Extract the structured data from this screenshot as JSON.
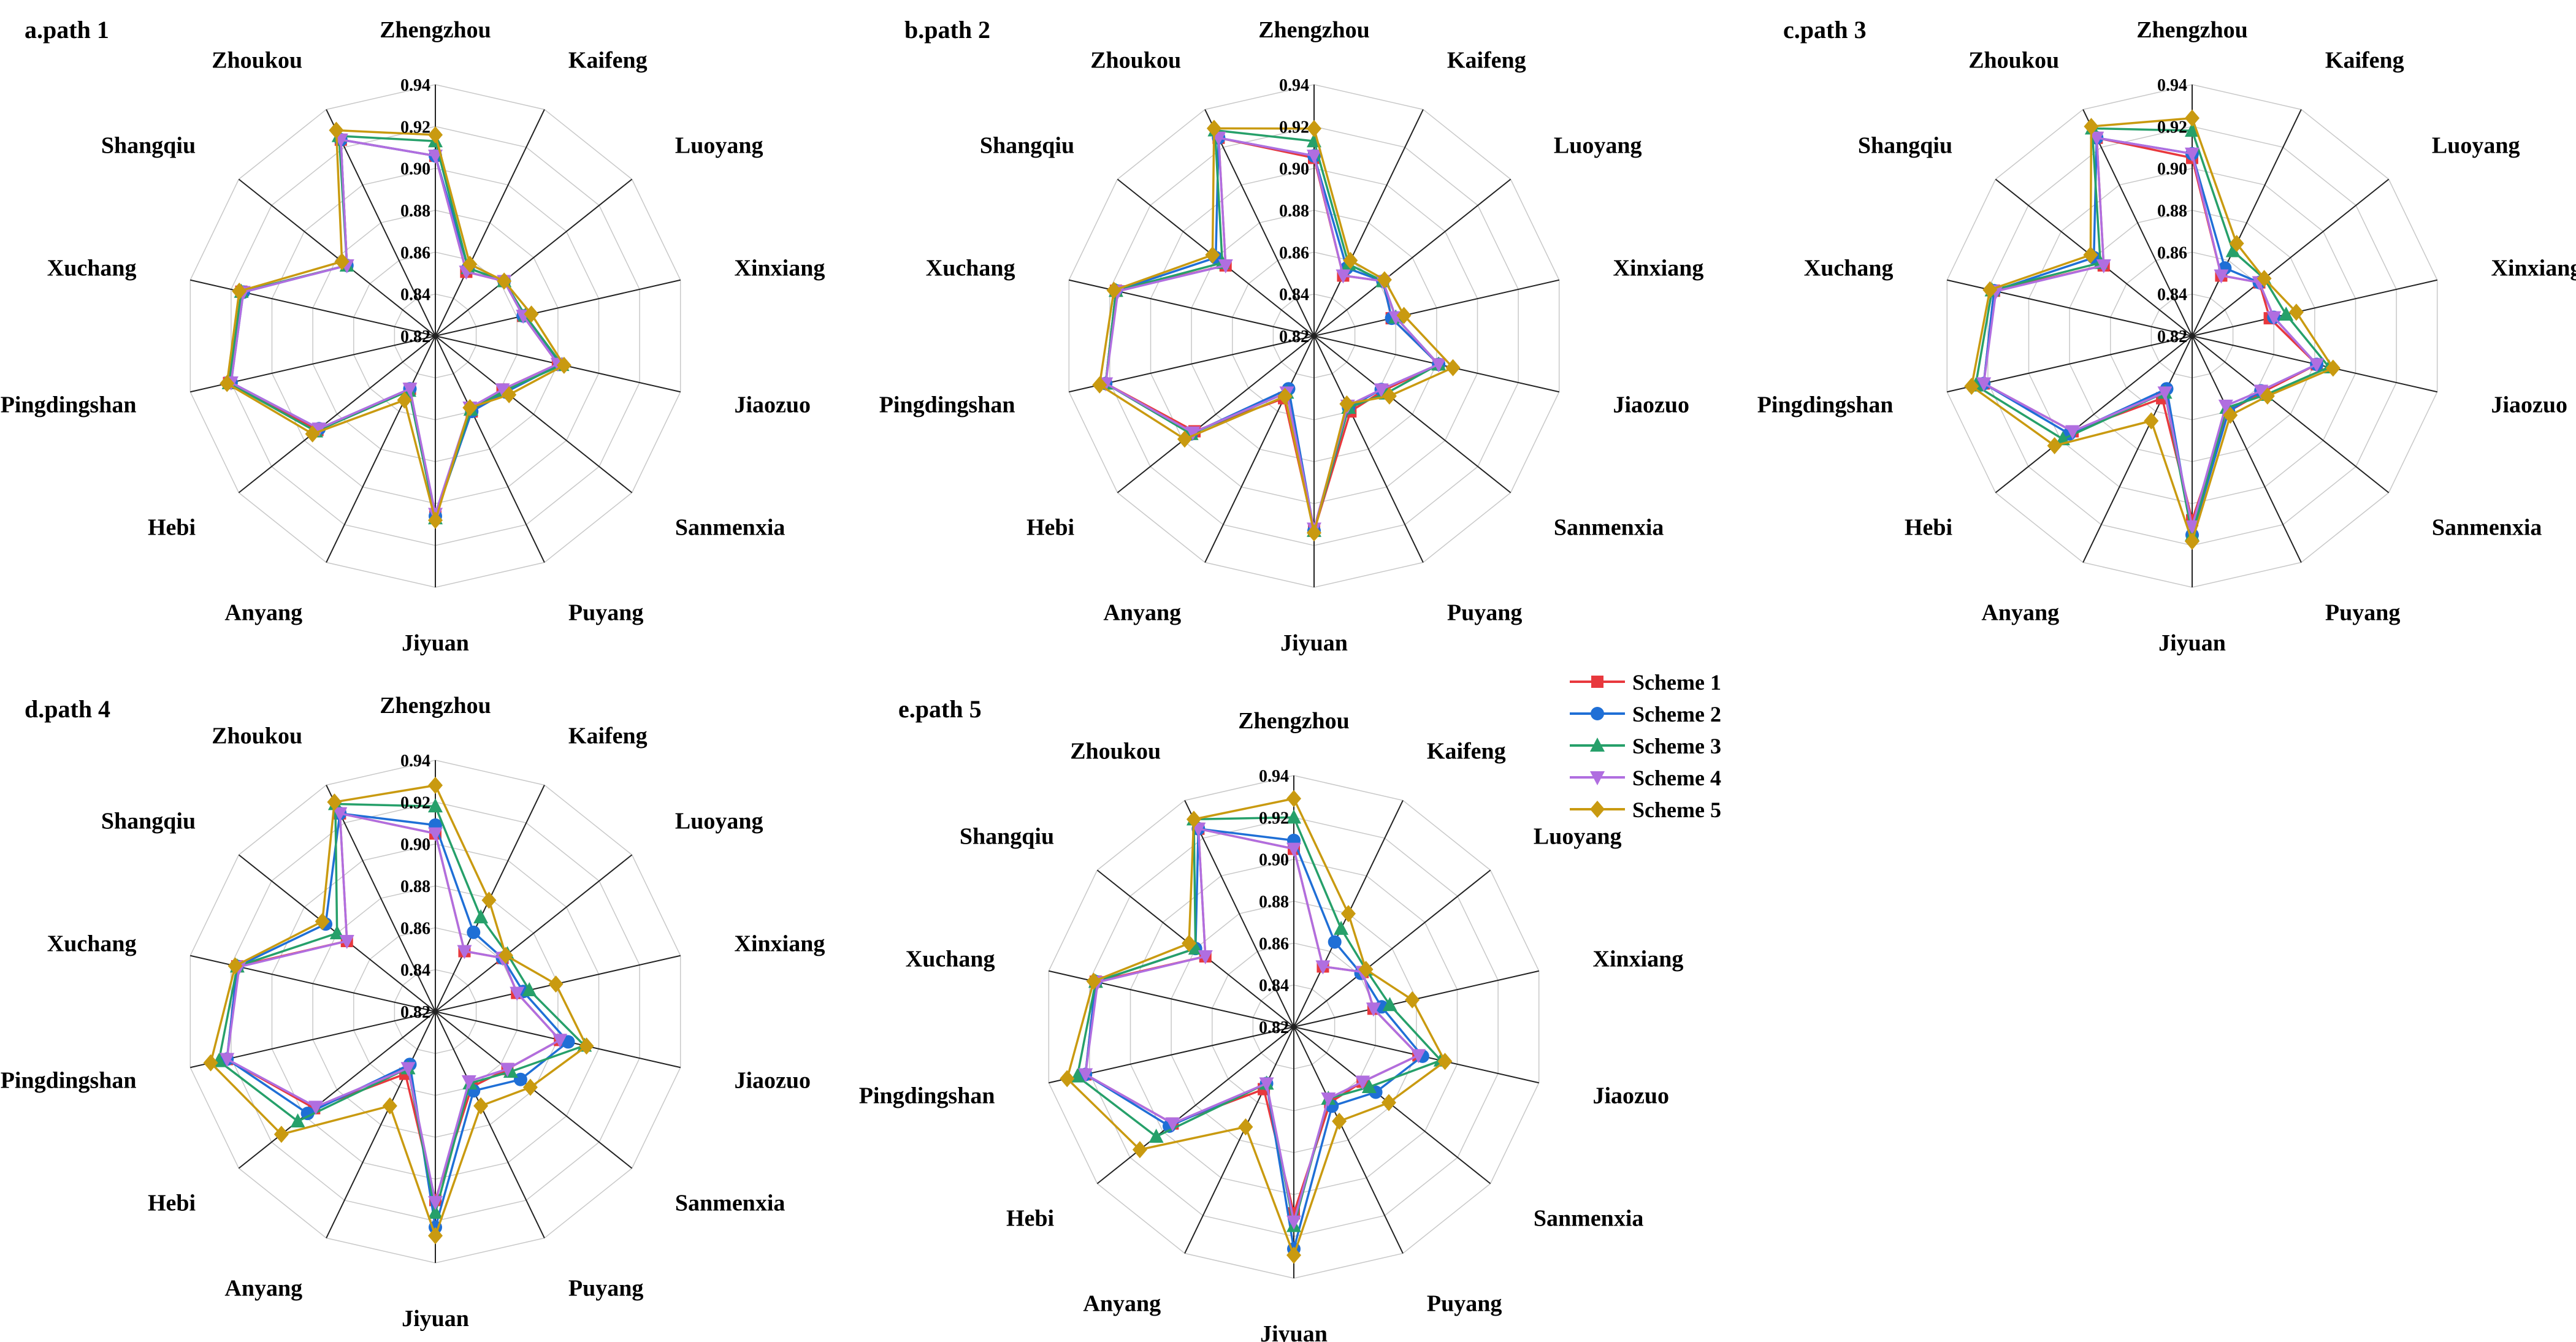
{
  "chart_data": {
    "type": "radar",
    "categories": [
      "Zhengzhou",
      "Kaifeng",
      "Luoyang",
      "Xinxiang",
      "Jiaozuo",
      "Sanmenxia",
      "Puyang",
      "Jiyuan",
      "Anyang",
      "Hebi",
      "Pingdingshan",
      "Xuchang",
      "Shangqiu",
      "Zhoukou"
    ],
    "ticks": [
      "0.82",
      "0.84",
      "0.86",
      "0.88",
      "0.90",
      "0.92",
      "0.94"
    ],
    "rlim": [
      0.82,
      0.94
    ],
    "series_names": [
      "Scheme 1",
      "Scheme 2",
      "Scheme 3",
      "Scheme 4",
      "Scheme 5"
    ],
    "colors": [
      "#e8383d",
      "#1f6fd6",
      "#26a06a",
      "#b06ee0",
      "#c99a10"
    ],
    "markers": [
      "square",
      "circle",
      "triangle-up",
      "triangle-down",
      "diamond"
    ],
    "panels": [
      {
        "title": "a.path 1",
        "series": [
          {
            "name": "Scheme 1",
            "values": [
              0.906,
              0.854,
              0.862,
              0.863,
              0.88,
              0.861,
              0.86,
              0.906,
              0.848,
              0.892,
              0.921,
              0.915,
              0.874,
              0.924
            ]
          },
          {
            "name": "Scheme 2",
            "values": [
              0.906,
              0.856,
              0.862,
              0.863,
              0.881,
              0.863,
              0.86,
              0.906,
              0.848,
              0.891,
              0.92,
              0.914,
              0.874,
              0.924
            ]
          },
          {
            "name": "Scheme 3",
            "values": [
              0.913,
              0.856,
              0.862,
              0.864,
              0.882,
              0.862,
              0.859,
              0.907,
              0.849,
              0.893,
              0.921,
              0.915,
              0.874,
              0.926
            ]
          },
          {
            "name": "Scheme 4",
            "values": [
              0.906,
              0.854,
              0.862,
              0.863,
              0.88,
              0.861,
              0.858,
              0.905,
              0.848,
              0.891,
              0.92,
              0.914,
              0.874,
              0.924
            ]
          },
          {
            "name": "Scheme 5",
            "values": [
              0.916,
              0.858,
              0.862,
              0.867,
              0.883,
              0.865,
              0.858,
              0.908,
              0.854,
              0.895,
              0.922,
              0.916,
              0.877,
              0.929
            ]
          }
        ]
      },
      {
        "title": "b.path 2",
        "series": [
          {
            "name": "Scheme 1",
            "values": [
              0.905,
              0.852,
              0.862,
              0.858,
              0.881,
              0.862,
              0.86,
              0.913,
              0.853,
              0.893,
              0.922,
              0.917,
              0.874,
              0.925
            ]
          },
          {
            "name": "Scheme 2",
            "values": [
              0.906,
              0.856,
              0.862,
              0.858,
              0.881,
              0.861,
              0.858,
              0.913,
              0.848,
              0.895,
              0.922,
              0.917,
              0.88,
              0.925
            ]
          },
          {
            "name": "Scheme 3",
            "values": [
              0.913,
              0.858,
              0.862,
              0.86,
              0.881,
              0.864,
              0.858,
              0.913,
              0.85,
              0.895,
              0.922,
              0.917,
              0.876,
              0.929
            ]
          },
          {
            "name": "Scheme 4",
            "values": [
              0.906,
              0.852,
              0.862,
              0.86,
              0.881,
              0.861,
              0.857,
              0.912,
              0.85,
              0.894,
              0.922,
              0.916,
              0.874,
              0.925
            ]
          },
          {
            "name": "Scheme 5",
            "values": [
              0.919,
              0.86,
              0.863,
              0.864,
              0.888,
              0.866,
              0.856,
              0.914,
              0.852,
              0.899,
              0.925,
              0.918,
              0.882,
              0.93
            ]
          }
        ]
      },
      {
        "title": "c.path 3",
        "series": [
          {
            "name": "Scheme 1",
            "values": [
              0.905,
              0.852,
              0.861,
              0.858,
              0.881,
              0.863,
              0.86,
              0.908,
              0.853,
              0.893,
              0.922,
              0.917,
              0.874,
              0.925
            ]
          },
          {
            "name": "Scheme 2",
            "values": [
              0.907,
              0.856,
              0.861,
              0.86,
              0.881,
              0.862,
              0.86,
              0.915,
              0.848,
              0.895,
              0.922,
              0.917,
              0.88,
              0.925
            ]
          },
          {
            "name": "Scheme 3",
            "values": [
              0.918,
              0.865,
              0.864,
              0.866,
              0.887,
              0.865,
              0.858,
              0.915,
              0.85,
              0.899,
              0.926,
              0.918,
              0.876,
              0.93
            ]
          },
          {
            "name": "Scheme 4",
            "values": [
              0.907,
              0.852,
              0.861,
              0.86,
              0.881,
              0.862,
              0.857,
              0.911,
              0.85,
              0.893,
              0.922,
              0.916,
              0.874,
              0.925
            ]
          },
          {
            "name": "Scheme 5",
            "values": [
              0.924,
              0.869,
              0.864,
              0.871,
              0.889,
              0.866,
              0.862,
              0.918,
              0.865,
              0.904,
              0.928,
              0.919,
              0.882,
              0.931
            ]
          }
        ]
      },
      {
        "title": "d.path 4",
        "series": [
          {
            "name": "Scheme 1",
            "values": [
              0.905,
              0.852,
              0.861,
              0.86,
              0.881,
              0.864,
              0.86,
              0.91,
              0.853,
              0.894,
              0.922,
              0.917,
              0.874,
              0.925
            ]
          },
          {
            "name": "Scheme 2",
            "values": [
              0.909,
              0.862,
              0.861,
              0.863,
              0.885,
              0.872,
              0.862,
              0.923,
              0.848,
              0.898,
              0.922,
              0.917,
              0.887,
              0.925
            ]
          },
          {
            "name": "Scheme 3",
            "values": [
              0.918,
              0.87,
              0.864,
              0.866,
              0.893,
              0.866,
              0.858,
              0.916,
              0.85,
              0.904,
              0.926,
              0.917,
              0.88,
              0.93
            ]
          },
          {
            "name": "Scheme 4",
            "values": [
              0.905,
              0.852,
              0.861,
              0.86,
              0.881,
              0.864,
              0.857,
              0.911,
              0.85,
              0.893,
              0.922,
              0.916,
              0.874,
              0.925
            ]
          },
          {
            "name": "Scheme 5",
            "values": [
              0.928,
              0.879,
              0.863,
              0.879,
              0.894,
              0.878,
              0.87,
              0.927,
              0.87,
              0.914,
              0.93,
              0.918,
              0.889,
              0.931
            ]
          }
        ]
      },
      {
        "title": "e.path 5",
        "series": [
          {
            "name": "Scheme 1",
            "values": [
              0.905,
              0.852,
              0.862,
              0.859,
              0.881,
              0.862,
              0.86,
              0.909,
              0.853,
              0.894,
              0.922,
              0.917,
              0.874,
              0.925
            ]
          },
          {
            "name": "Scheme 2",
            "values": [
              0.909,
              0.865,
              0.861,
              0.863,
              0.883,
              0.87,
              0.862,
              0.926,
              0.85,
              0.896,
              0.922,
              0.917,
              0.88,
              0.925
            ]
          },
          {
            "name": "Scheme 3",
            "values": [
              0.92,
              0.872,
              0.864,
              0.867,
              0.892,
              0.866,
              0.858,
              0.915,
              0.85,
              0.904,
              0.926,
              0.917,
              0.88,
              0.93
            ]
          },
          {
            "name": "Scheme 4",
            "values": [
              0.905,
              0.852,
              0.862,
              0.859,
              0.881,
              0.862,
              0.858,
              0.913,
              0.85,
              0.894,
              0.922,
              0.916,
              0.874,
              0.925
            ]
          },
          {
            "name": "Scheme 5",
            "values": [
              0.929,
              0.88,
              0.864,
              0.878,
              0.894,
              0.878,
              0.87,
              0.929,
              0.873,
              0.914,
              0.931,
              0.918,
              0.884,
              0.93
            ]
          }
        ]
      }
    ]
  }
}
